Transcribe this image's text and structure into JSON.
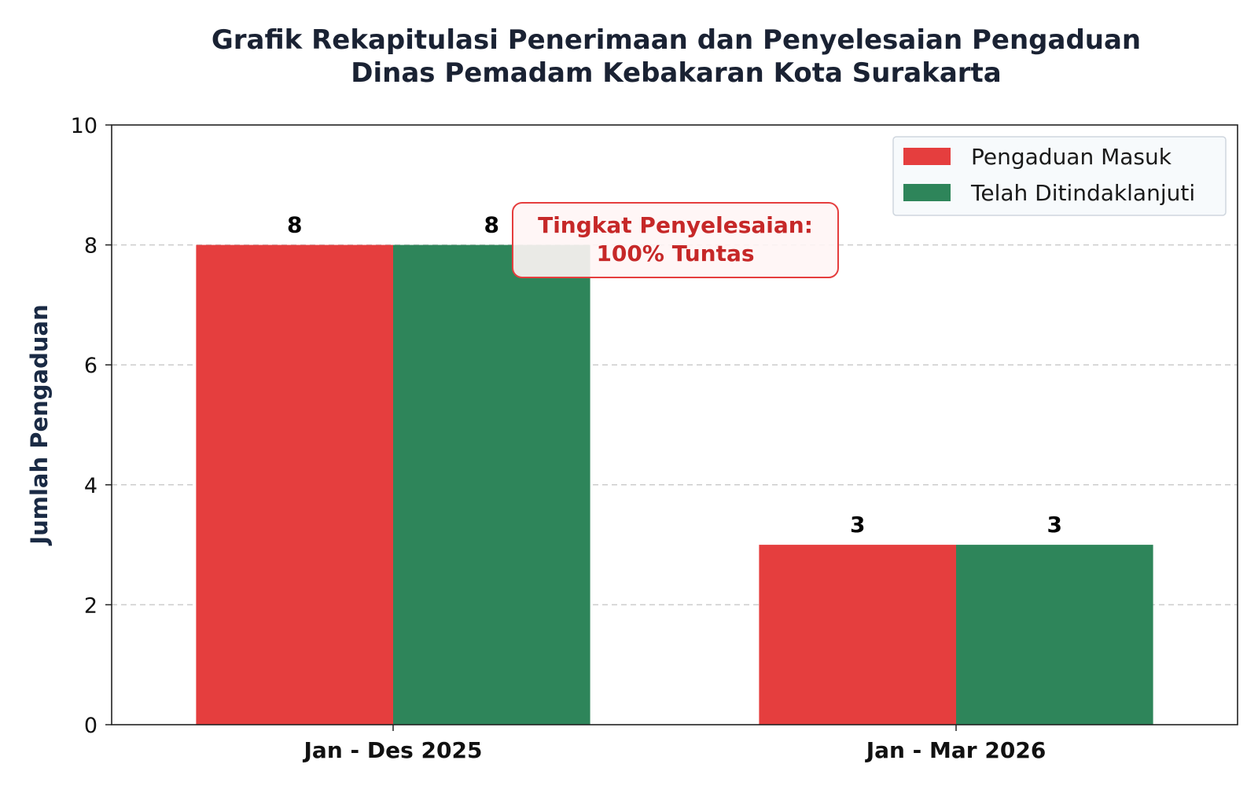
{
  "chart_data": {
    "type": "bar",
    "title": "Grafik Rekapitulasi Penerimaan dan Penyelesaian Pengaduan",
    "subtitle": "Dinas Pemadam Kebakaran Kota Surakarta",
    "xlabel": "",
    "ylabel": "Jumlah Pengaduan",
    "categories": [
      "Jan - Des 2025",
      "Jan - Mar 2026"
    ],
    "series": [
      {
        "name": "Pengaduan Masuk",
        "color": "#e53e3e",
        "values": [
          8,
          3
        ]
      },
      {
        "name": "Telah Ditindaklanjuti",
        "color": "#2e855a",
        "values": [
          8,
          3
        ]
      }
    ],
    "ylim": [
      0,
      10
    ],
    "yticks": [
      0,
      2,
      4,
      6,
      8,
      10
    ],
    "grid": "y-dashed",
    "legend_position": "top-right",
    "annotation": {
      "line1": "Tingkat Penyelesaian:",
      "line2": "100% Tuntas",
      "color": "#c62828",
      "background": "#fff5f5"
    }
  }
}
